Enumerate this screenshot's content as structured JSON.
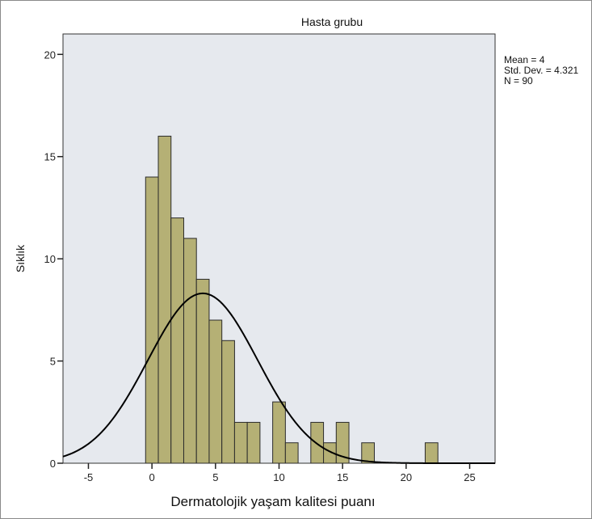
{
  "chart_data": {
    "type": "bar",
    "title": "Hasta grubu",
    "xlabel": "Dermatolojik yaşam kalitesi puanı",
    "ylabel": "Sıklık",
    "xlim": [
      -7,
      27
    ],
    "ylim": [
      0,
      21
    ],
    "x_ticks": [
      -5,
      0,
      5,
      10,
      15,
      20,
      25
    ],
    "y_ticks": [
      0,
      5,
      10,
      15,
      20
    ],
    "bin_width": 1,
    "bins": [
      {
        "x": 0,
        "count": 14
      },
      {
        "x": 1,
        "count": 16
      },
      {
        "x": 2,
        "count": 12
      },
      {
        "x": 3,
        "count": 11
      },
      {
        "x": 4,
        "count": 9
      },
      {
        "x": 5,
        "count": 7
      },
      {
        "x": 6,
        "count": 6
      },
      {
        "x": 7,
        "count": 2
      },
      {
        "x": 8,
        "count": 2
      },
      {
        "x": 10,
        "count": 3
      },
      {
        "x": 11,
        "count": 1
      },
      {
        "x": 13,
        "count": 2
      },
      {
        "x": 14,
        "count": 1
      },
      {
        "x": 15,
        "count": 2
      },
      {
        "x": 17,
        "count": 1
      },
      {
        "x": 22,
        "count": 1
      }
    ],
    "normal_curve": {
      "mean": 4,
      "std_dev": 4.321,
      "n": 90
    },
    "stats_labels": [
      "Mean = 4",
      "Std. Dev. = 4.321",
      "N = 90"
    ],
    "colors": {
      "bar_fill": "#b5b075",
      "bar_stroke": "#2b2b2b",
      "plot_background": "#e6e9ee",
      "curve": "#000000"
    },
    "grid": false
  }
}
